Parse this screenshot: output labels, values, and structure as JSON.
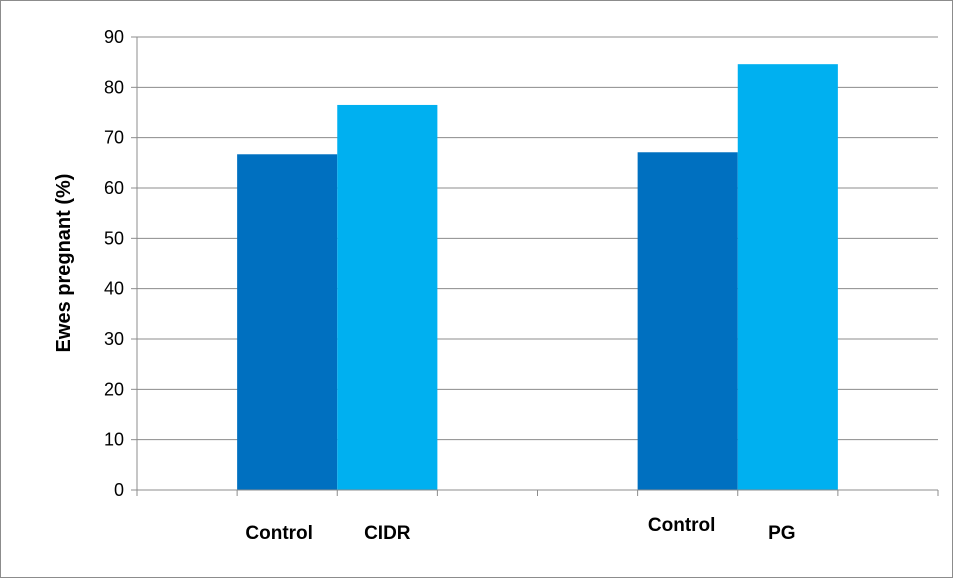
{
  "chart_data": {
    "type": "bar",
    "title": "",
    "xlabel": "",
    "ylabel": "Ewes pregnant (%)",
    "ylim": [
      0,
      90
    ],
    "yticks": [
      0,
      10,
      20,
      30,
      40,
      50,
      60,
      70,
      80,
      90
    ],
    "grid": true,
    "legend": "none",
    "groups": [
      {
        "bars": [
          {
            "label": "Control",
            "value": 66.7,
            "color": "#0070c0"
          },
          {
            "label": "CIDR",
            "value": 76.5,
            "color": "#00b0f0"
          }
        ]
      },
      {
        "bars": [
          {
            "label": "Control",
            "value": 67.1,
            "color": "#0070c0"
          },
          {
            "label": "PG",
            "value": 84.6,
            "color": "#00b0f0"
          }
        ]
      }
    ]
  }
}
